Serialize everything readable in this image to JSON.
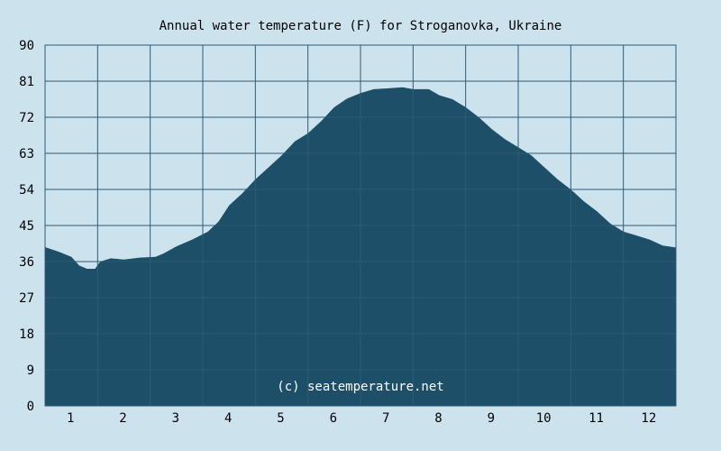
{
  "chart_data": {
    "type": "area",
    "title": "Annual water temperature (F) for Stroganovka, Ukraine",
    "watermark": "(c) seatemperature.net",
    "xlabel": "",
    "ylabel": "",
    "xlim": [
      0.5,
      12.5
    ],
    "ylim": [
      0,
      90
    ],
    "x_ticks": [
      1,
      2,
      3,
      4,
      5,
      6,
      7,
      8,
      9,
      10,
      11,
      12
    ],
    "y_ticks": [
      0,
      9,
      18,
      27,
      36,
      45,
      54,
      63,
      72,
      81,
      90
    ],
    "grid": true,
    "colors": {
      "background": "#cce3ee",
      "plot_background": "#cce3ee",
      "fill": "#1e4f69",
      "grid": "#2f5a75",
      "watermark_text": "#ffffff"
    },
    "series": [
      {
        "x": [
          0.5,
          0.75,
          1.0,
          1.15,
          1.3,
          1.45,
          1.55,
          1.75,
          2.0,
          2.3,
          2.6,
          2.75,
          3.0,
          3.3,
          3.6,
          3.8,
          4.0,
          4.25,
          4.5,
          4.75,
          5.0,
          5.25,
          5.5,
          5.75,
          6.0,
          6.25,
          6.5,
          6.75,
          7.0,
          7.3,
          7.5,
          7.8,
          8.0,
          8.25,
          8.5,
          8.75,
          9.0,
          9.25,
          9.5,
          9.75,
          10.0,
          10.25,
          10.5,
          10.75,
          11.0,
          11.25,
          11.5,
          11.75,
          12.0,
          12.25,
          12.5
        ],
        "y": [
          39.6,
          38.5,
          37.2,
          35.0,
          34.2,
          34.2,
          36.0,
          36.8,
          36.5,
          37.0,
          37.2,
          38.0,
          39.8,
          41.5,
          43.5,
          46.0,
          50.0,
          53.0,
          56.5,
          59.5,
          62.5,
          66.0,
          68.0,
          71.0,
          74.5,
          76.7,
          78.0,
          79.0,
          79.2,
          79.5,
          79.0,
          79.0,
          77.5,
          76.5,
          74.5,
          72.0,
          69.0,
          66.5,
          64.5,
          62.5,
          59.5,
          56.5,
          54.0,
          51.0,
          48.5,
          45.5,
          43.5,
          42.5,
          41.5,
          40.0,
          39.5
        ]
      }
    ]
  }
}
